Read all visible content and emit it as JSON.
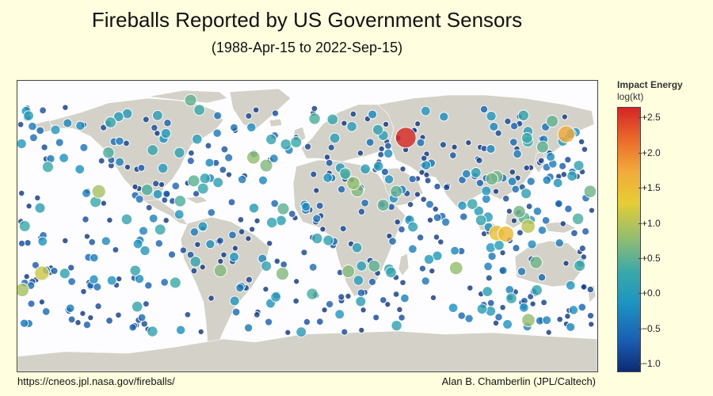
{
  "title": "Fireballs Reported by US Government Sensors",
  "subtitle": "(1988-Apr-15 to 2022-Sep-15)",
  "footer": {
    "source": "https://cneos.jpl.nasa.gov/fireballs/",
    "credit": "Alan B. Chamberlin (JPL/Caltech)"
  },
  "legend": {
    "title": "Impact Energy",
    "unit": "log(kt)",
    "min": -1.1,
    "max": 2.65,
    "ticks": [
      {
        "value": 2.5,
        "label": "+2.5"
      },
      {
        "value": 2.0,
        "label": "+2.0"
      },
      {
        "value": 1.5,
        "label": "+1.5"
      },
      {
        "value": 1.0,
        "label": "+1.0"
      },
      {
        "value": 0.5,
        "label": "+0.5"
      },
      {
        "value": 0.0,
        "label": "+0.0"
      },
      {
        "value": -0.5,
        "label": "−0.5"
      },
      {
        "value": -1.0,
        "label": "−1.0"
      }
    ]
  },
  "colors": {
    "land": "#d4d2c8",
    "ocean": "#fdfdff",
    "border": "#ffffff",
    "scale": [
      "#0d2a74",
      "#1a5fb4",
      "#1d94c2",
      "#3ba9a9",
      "#8fbc73",
      "#e6cd35",
      "#f2a93b",
      "#ea6a2b",
      "#d42424"
    ]
  },
  "chart_data": {
    "type": "scatter",
    "projection": "equirectangular",
    "xlim": [
      -180,
      180
    ],
    "ylim": [
      -90,
      90
    ],
    "fields": [
      "lon",
      "lat",
      "log_energy_kt"
    ],
    "highlights": [
      [
        61.1,
        54.8,
        2.6
      ],
      [
        160.7,
        56.9,
        1.7
      ],
      [
        123.2,
        -4.9,
        1.5
      ],
      [
        117.6,
        -4.3,
        1.4
      ],
      [
        137.0,
        -0.1,
        1.0
      ],
      [
        -164.8,
        -29.2,
        1.1
      ],
      [
        -177.0,
        -39.5,
        0.9
      ],
      [
        -129.5,
        21.5,
        0.9
      ],
      [
        -33.5,
        42.5,
        0.8
      ],
      [
        -25.5,
        37.5,
        0.7
      ],
      [
        28.5,
        26.6,
        0.8
      ],
      [
        31.0,
        22.0,
        0.7
      ],
      [
        117.5,
        30.6,
        0.6
      ],
      [
        175.5,
        21.5,
        0.6
      ],
      [
        114.5,
        29.3,
        0.6
      ],
      [
        131.5,
        9.0,
        0.6
      ],
      [
        -54.0,
        -27.5,
        0.7
      ],
      [
        -15.5,
        -29.5,
        0.7
      ],
      [
        25.5,
        -28.0,
        0.7
      ],
      [
        92.3,
        -26.0,
        0.8
      ],
      [
        137.2,
        -58.2,
        0.8
      ],
      [
        -72.5,
        78.0,
        0.5
      ],
      [
        -15.0,
        10.7,
        0.5
      ],
      [
        -70.5,
        28.0,
        0.5
      ],
      [
        41.5,
        -24.7,
        0.5
      ],
      [
        134.5,
        5.0,
        0.5
      ],
      [
        142.0,
        -22.5,
        0.6
      ],
      [
        146.0,
        49.0,
        0.5
      ],
      [
        152.0,
        65.0,
        0.5
      ],
      [
        -123.5,
        45.5,
        0.4
      ],
      [
        -99.5,
        22.5,
        0.4
      ],
      [
        55.2,
        21.5,
        0.5
      ],
      [
        47.0,
        13.0,
        0.5
      ],
      [
        23.5,
        32.5,
        0.4
      ],
      [
        -79.0,
        15.5,
        0.4
      ],
      [
        168.0,
        4.5,
        0.4
      ],
      [
        -7.0,
        52.0,
        0.3
      ],
      [
        -82.0,
        -35.0,
        0.3
      ],
      [
        -131.5,
        15.0,
        0.3
      ],
      [
        -175.5,
        0.0,
        0.3
      ],
      [
        3.0,
        -42.0,
        0.4
      ],
      [
        169.0,
        -24.5,
        0.3
      ],
      [
        4.5,
        66.5,
        0.4
      ]
    ],
    "random_background_points": {
      "count": 560,
      "seed": 7,
      "energy_range": [
        -1.0,
        0.3
      ]
    }
  }
}
